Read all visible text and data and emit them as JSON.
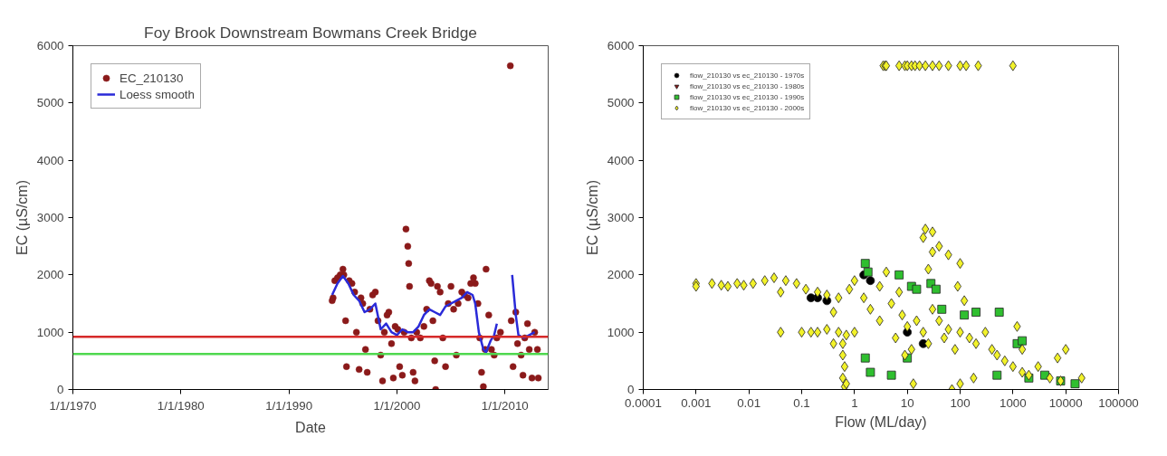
{
  "chart_data": [
    {
      "type": "scatter",
      "title": "Foy Brook Downstream Bowmans Creek Bridge",
      "xlabel": "Date",
      "ylabel": "EC (µS/cm)",
      "xlim": [
        "1970-01-01",
        "2014-01-01"
      ],
      "ylim": [
        0,
        6000
      ],
      "xticks": [
        {
          "value": "1970-01-01",
          "label": "1/1/1970"
        },
        {
          "value": "1980-01-01",
          "label": "1/1/1980"
        },
        {
          "value": "1990-01-01",
          "label": "1/1/1990"
        },
        {
          "value": "2000-01-01",
          "label": "1/1/2000"
        },
        {
          "value": "2010-01-01",
          "label": "1/1/2010"
        }
      ],
      "yticks": [
        0,
        1000,
        2000,
        3000,
        4000,
        5000,
        6000
      ],
      "grid": false,
      "legend": "top left",
      "ref_lines": [
        {
          "axis": "y",
          "value": 920,
          "color": "#d62a2a"
        },
        {
          "axis": "y",
          "value": 620,
          "color": "#4fd84f"
        }
      ],
      "series": [
        {
          "name": "EC_210130",
          "type": "scatter",
          "marker": "circle",
          "color": "#8b1a1a",
          "x": [
            "1994-01",
            "1994-02",
            "1994-04",
            "1994-07",
            "1994-10",
            "1995-01",
            "1995-02",
            "1995-04",
            "1995-05",
            "1995-08",
            "1995-11",
            "1996-02",
            "1996-04",
            "1996-07",
            "1996-09",
            "1996-11",
            "1997-02",
            "1997-04",
            "1997-07",
            "1997-10",
            "1998-01",
            "1998-04",
            "1998-07",
            "1998-09",
            "1998-11",
            "1999-02",
            "1999-04",
            "1999-07",
            "1999-09",
            "1999-11",
            "2000-02",
            "2000-04",
            "2000-07",
            "2000-09",
            "2000-11",
            "2001-01",
            "2001-02",
            "2001-03",
            "2001-05",
            "2001-07",
            "2001-09",
            "2001-11",
            "2002-03",
            "2002-07",
            "2002-10",
            "2003-01",
            "2003-03",
            "2003-05",
            "2003-07",
            "2003-08",
            "2003-10",
            "2004-01",
            "2004-04",
            "2004-07",
            "2004-10",
            "2005-01",
            "2005-04",
            "2005-07",
            "2005-09",
            "2006-01",
            "2006-04",
            "2006-08",
            "2006-11",
            "2007-02",
            "2007-04",
            "2007-07",
            "2007-09",
            "2007-11",
            "2008-01",
            "2008-03",
            "2008-04",
            "2008-07",
            "2008-10",
            "2009-01",
            "2009-04",
            "2009-08",
            "2010-07",
            "2010-08",
            "2010-10",
            "2011-01",
            "2011-03",
            "2011-07",
            "2011-09",
            "2011-11",
            "2012-02",
            "2012-04",
            "2012-07",
            "2012-10",
            "2013-01",
            "2013-02"
          ],
          "values": [
            1550,
            1600,
            1900,
            1950,
            2000,
            2100,
            2000,
            1200,
            400,
            1900,
            1850,
            1700,
            1000,
            350,
            1600,
            1500,
            700,
            300,
            1400,
            1650,
            1700,
            1200,
            600,
            150,
            1000,
            1300,
            1350,
            800,
            200,
            1100,
            1050,
            400,
            250,
            1000,
            2800,
            2500,
            2200,
            1800,
            900,
            300,
            150,
            1000,
            900,
            1100,
            1400,
            1900,
            1850,
            1200,
            500,
            0,
            1800,
            1700,
            900,
            400,
            1500,
            1800,
            1400,
            600,
            1500,
            1700,
            1650,
            1600,
            1850,
            1950,
            1850,
            1500,
            900,
            300,
            50,
            700,
            2100,
            1300,
            700,
            600,
            900,
            1000,
            5650,
            1200,
            400,
            1350,
            800,
            600,
            250,
            900,
            1150,
            700,
            200,
            1000,
            700,
            200
          ]
        },
        {
          "name": "Loess smooth",
          "type": "line",
          "color": "#2a2ad8",
          "line_style": "solid",
          "x": [
            "1994-01",
            "1994-07",
            "1995-01",
            "1995-07",
            "1996-01",
            "1996-07",
            "1997-01",
            "1997-07",
            "1998-01",
            "1998-07",
            "1999-01",
            "1999-07",
            "2000-01",
            "2000-07",
            "2001-01",
            "2001-07",
            "2002-01",
            "2002-07",
            "2003-01",
            "2003-07",
            "2004-01",
            "2004-07",
            "2005-01",
            "2005-07",
            "2006-01",
            "2006-07",
            "2007-01",
            "2007-04",
            "2007-08",
            "2008-01",
            "2008-04",
            "2008-09",
            "2009-01",
            "2009-04",
            "2010-01",
            "2010-09",
            "2011-01",
            "2011-04",
            "2011-10",
            "2012-04",
            "2012-10"
          ],
          "values": [
            1650,
            1850,
            1980,
            1850,
            1650,
            1550,
            1350,
            1400,
            1500,
            1050,
            1150,
            1000,
            950,
            1050,
            1000,
            1000,
            1100,
            1300,
            1400,
            1350,
            1300,
            1450,
            1500,
            1550,
            1600,
            1700,
            1650,
            1500,
            1000,
            700,
            650,
            850,
            950,
            1150,
            null,
            2000,
            1300,
            950,
            900,
            950,
            1000
          ]
        }
      ]
    },
    {
      "type": "scatter",
      "xlabel": "Flow (ML/day)",
      "ylabel": "EC (µS/cm)",
      "log": "x",
      "xlim": [
        0.0001,
        100000
      ],
      "ylim": [
        0,
        6000
      ],
      "xticks": [
        0.0001,
        0.001,
        0.01,
        0.1,
        1,
        10,
        100,
        1000,
        10000,
        100000
      ],
      "yticks": [
        0,
        1000,
        2000,
        3000,
        4000,
        5000,
        6000
      ],
      "grid": false,
      "legend": "top left",
      "series": [
        {
          "name": "flow_210130 vs ec_210130 - 1970s",
          "marker": "circle",
          "color": "#000000",
          "x": [
            1.5,
            2,
            0.2,
            0.3,
            0.15,
            10,
            20
          ],
          "values": [
            2000,
            1900,
            1600,
            1550,
            1600,
            1000,
            800
          ]
        },
        {
          "name": "flow_210130 vs ec_210130 - 1980s",
          "marker": "triangle",
          "color": "#8b1a1a"
        },
        {
          "name": "flow_210130 vs ec_210130 - 1990s",
          "marker": "square",
          "color": "#2fbf2f",
          "x": [
            1.6,
            1.8,
            7,
            12,
            15,
            28,
            35,
            45,
            120,
            200,
            550,
            1200,
            1500,
            1.6,
            2,
            5,
            10,
            2000,
            4000,
            15000,
            8000,
            500
          ],
          "values": [
            2200,
            2050,
            2000,
            1800,
            1750,
            1850,
            1750,
            1400,
            1300,
            1350,
            1350,
            800,
            850,
            550,
            300,
            250,
            550,
            200,
            250,
            100,
            150,
            250
          ]
        },
        {
          "name": "flow_210130 vs ec_210130 - 2000s",
          "marker": "diamond",
          "color": "#f2f22a",
          "x": [
            3.5,
            3.8,
            4,
            7,
            9,
            10,
            12,
            14,
            17,
            22,
            30,
            40,
            60,
            100,
            130,
            220,
            1000,
            0.001,
            0.001,
            0.002,
            0.003,
            0.004,
            0.006,
            0.008,
            0.012,
            0.02,
            0.03,
            0.05,
            0.08,
            0.12,
            0.2,
            0.3,
            0.5,
            0.8,
            1,
            0.04,
            0.04,
            0.1,
            0.15,
            0.2,
            0.3,
            0.5,
            0.7,
            1,
            0.6,
            0.6,
            0.65,
            0.6,
            0.65,
            0.7,
            0.4,
            0.4,
            1.5,
            2,
            3,
            4,
            3,
            5,
            7,
            8,
            10,
            15,
            20,
            6,
            9,
            12,
            25,
            30,
            40,
            50,
            60,
            80,
            100,
            150,
            200,
            300,
            400,
            500,
            700,
            1000,
            1500,
            2000,
            1200,
            1500,
            3000,
            5000,
            8000,
            7000,
            10000,
            20000,
            20,
            22,
            30,
            25,
            30,
            40,
            60,
            100,
            90,
            120,
            13,
            70,
            100,
            180
          ],
          "values": [
            5650,
            5650,
            5650,
            5650,
            5650,
            5650,
            5650,
            5650,
            5650,
            5650,
            5650,
            5650,
            5650,
            5650,
            5650,
            5650,
            5650,
            1850,
            1800,
            1850,
            1820,
            1800,
            1850,
            1820,
            1850,
            1900,
            1950,
            1900,
            1850,
            1750,
            1700,
            1650,
            1600,
            1750,
            1900,
            1700,
            1000,
            1000,
            1000,
            1000,
            1050,
            1000,
            950,
            1000,
            800,
            600,
            400,
            200,
            50,
            100,
            800,
            1350,
            1600,
            1400,
            1800,
            2050,
            1200,
            1500,
            1700,
            1300,
            1100,
            1200,
            1000,
            900,
            600,
            700,
            800,
            1400,
            1200,
            900,
            1050,
            700,
            1000,
            900,
            800,
            1000,
            700,
            600,
            500,
            400,
            300,
            250,
            1100,
            700,
            400,
            200,
            150,
            550,
            700,
            200,
            2650,
            2800,
            2750,
            2100,
            2400,
            2500,
            2350,
            2200,
            1800,
            1550,
            100,
            0,
            100,
            200
          ]
        }
      ]
    }
  ]
}
